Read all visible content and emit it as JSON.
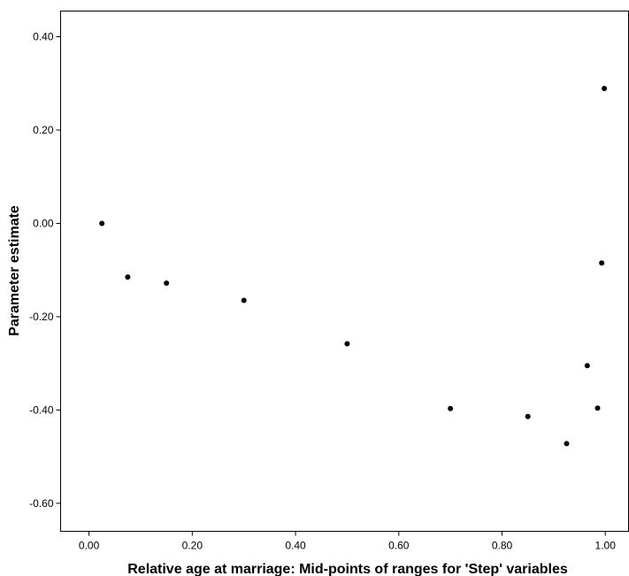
{
  "chart_data": {
    "type": "scatter",
    "title": "",
    "xlabel": "Relative age at marriage: Mid-points of ranges for 'Step' variables",
    "ylabel": "Parameter estimate",
    "xlim": [
      -0.055,
      1.045
    ],
    "ylim": [
      -0.66,
      0.455
    ],
    "xticks": [
      0.0,
      0.2,
      0.4,
      0.6,
      0.8,
      1.0
    ],
    "xtick_labels": [
      "0.00",
      "0.20",
      "0.40",
      "0.60",
      "0.80",
      "1.00"
    ],
    "yticks": [
      0.4,
      0.2,
      0.0,
      -0.2,
      -0.4,
      -0.6
    ],
    "ytick_labels": [
      "0.40",
      "0.20",
      "0.00",
      "-0.20",
      "-0.40",
      "-0.60"
    ],
    "grid": false,
    "legend": "none",
    "marker_color": "#000000",
    "points": [
      {
        "x": 0.025,
        "y": 0.0
      },
      {
        "x": 0.075,
        "y": -0.115
      },
      {
        "x": 0.15,
        "y": -0.128
      },
      {
        "x": 0.3,
        "y": -0.165
      },
      {
        "x": 0.5,
        "y": -0.258
      },
      {
        "x": 0.7,
        "y": -0.397
      },
      {
        "x": 0.85,
        "y": -0.414
      },
      {
        "x": 0.925,
        "y": -0.472
      },
      {
        "x": 0.965,
        "y": -0.305
      },
      {
        "x": 0.985,
        "y": -0.396
      },
      {
        "x": 0.993,
        "y": -0.085
      },
      {
        "x": 0.998,
        "y": 0.289
      }
    ]
  }
}
